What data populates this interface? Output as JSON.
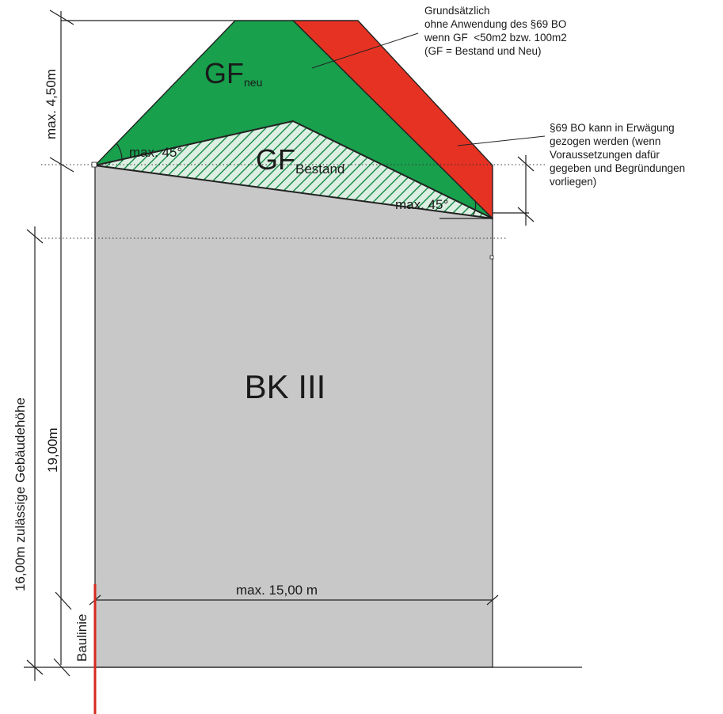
{
  "labels": {
    "gf_neu": "GF",
    "gf_neu_sub": "neu",
    "gf_bestand": "GF",
    "gf_bestand_sub": "Bestand",
    "bk": "BK III",
    "max_45_left": "max. 45°",
    "max_45_right": "max. 45°",
    "max_450": "max. 4,50m",
    "height_1900": "19,00m",
    "height_1600": "16,00m zulässige Gebäudehöhe",
    "width_1500": "max. 15,00 m",
    "baulinie": "Baulinie"
  },
  "notes": {
    "top": [
      "Grundsätzlich",
      "ohne Anwendung des §69 BO",
      "wenn GF  <50m2 bzw. 100m2",
      "(GF = Bestand und Neu)"
    ],
    "right": [
      "§69 BO kann in Erwägung",
      "gezogen werden (wenn",
      "Voraussetzungen dafür",
      "gegeben und Begründungen",
      "vorliegen)"
    ]
  },
  "colors": {
    "building": "#c8c8c8",
    "green": "#18a04d",
    "red": "#e63222",
    "hatch_bg": "#dcefe2",
    "hatch_line": "#1f8f4e",
    "baulinie": "#d42a1e",
    "line": "#222222"
  }
}
